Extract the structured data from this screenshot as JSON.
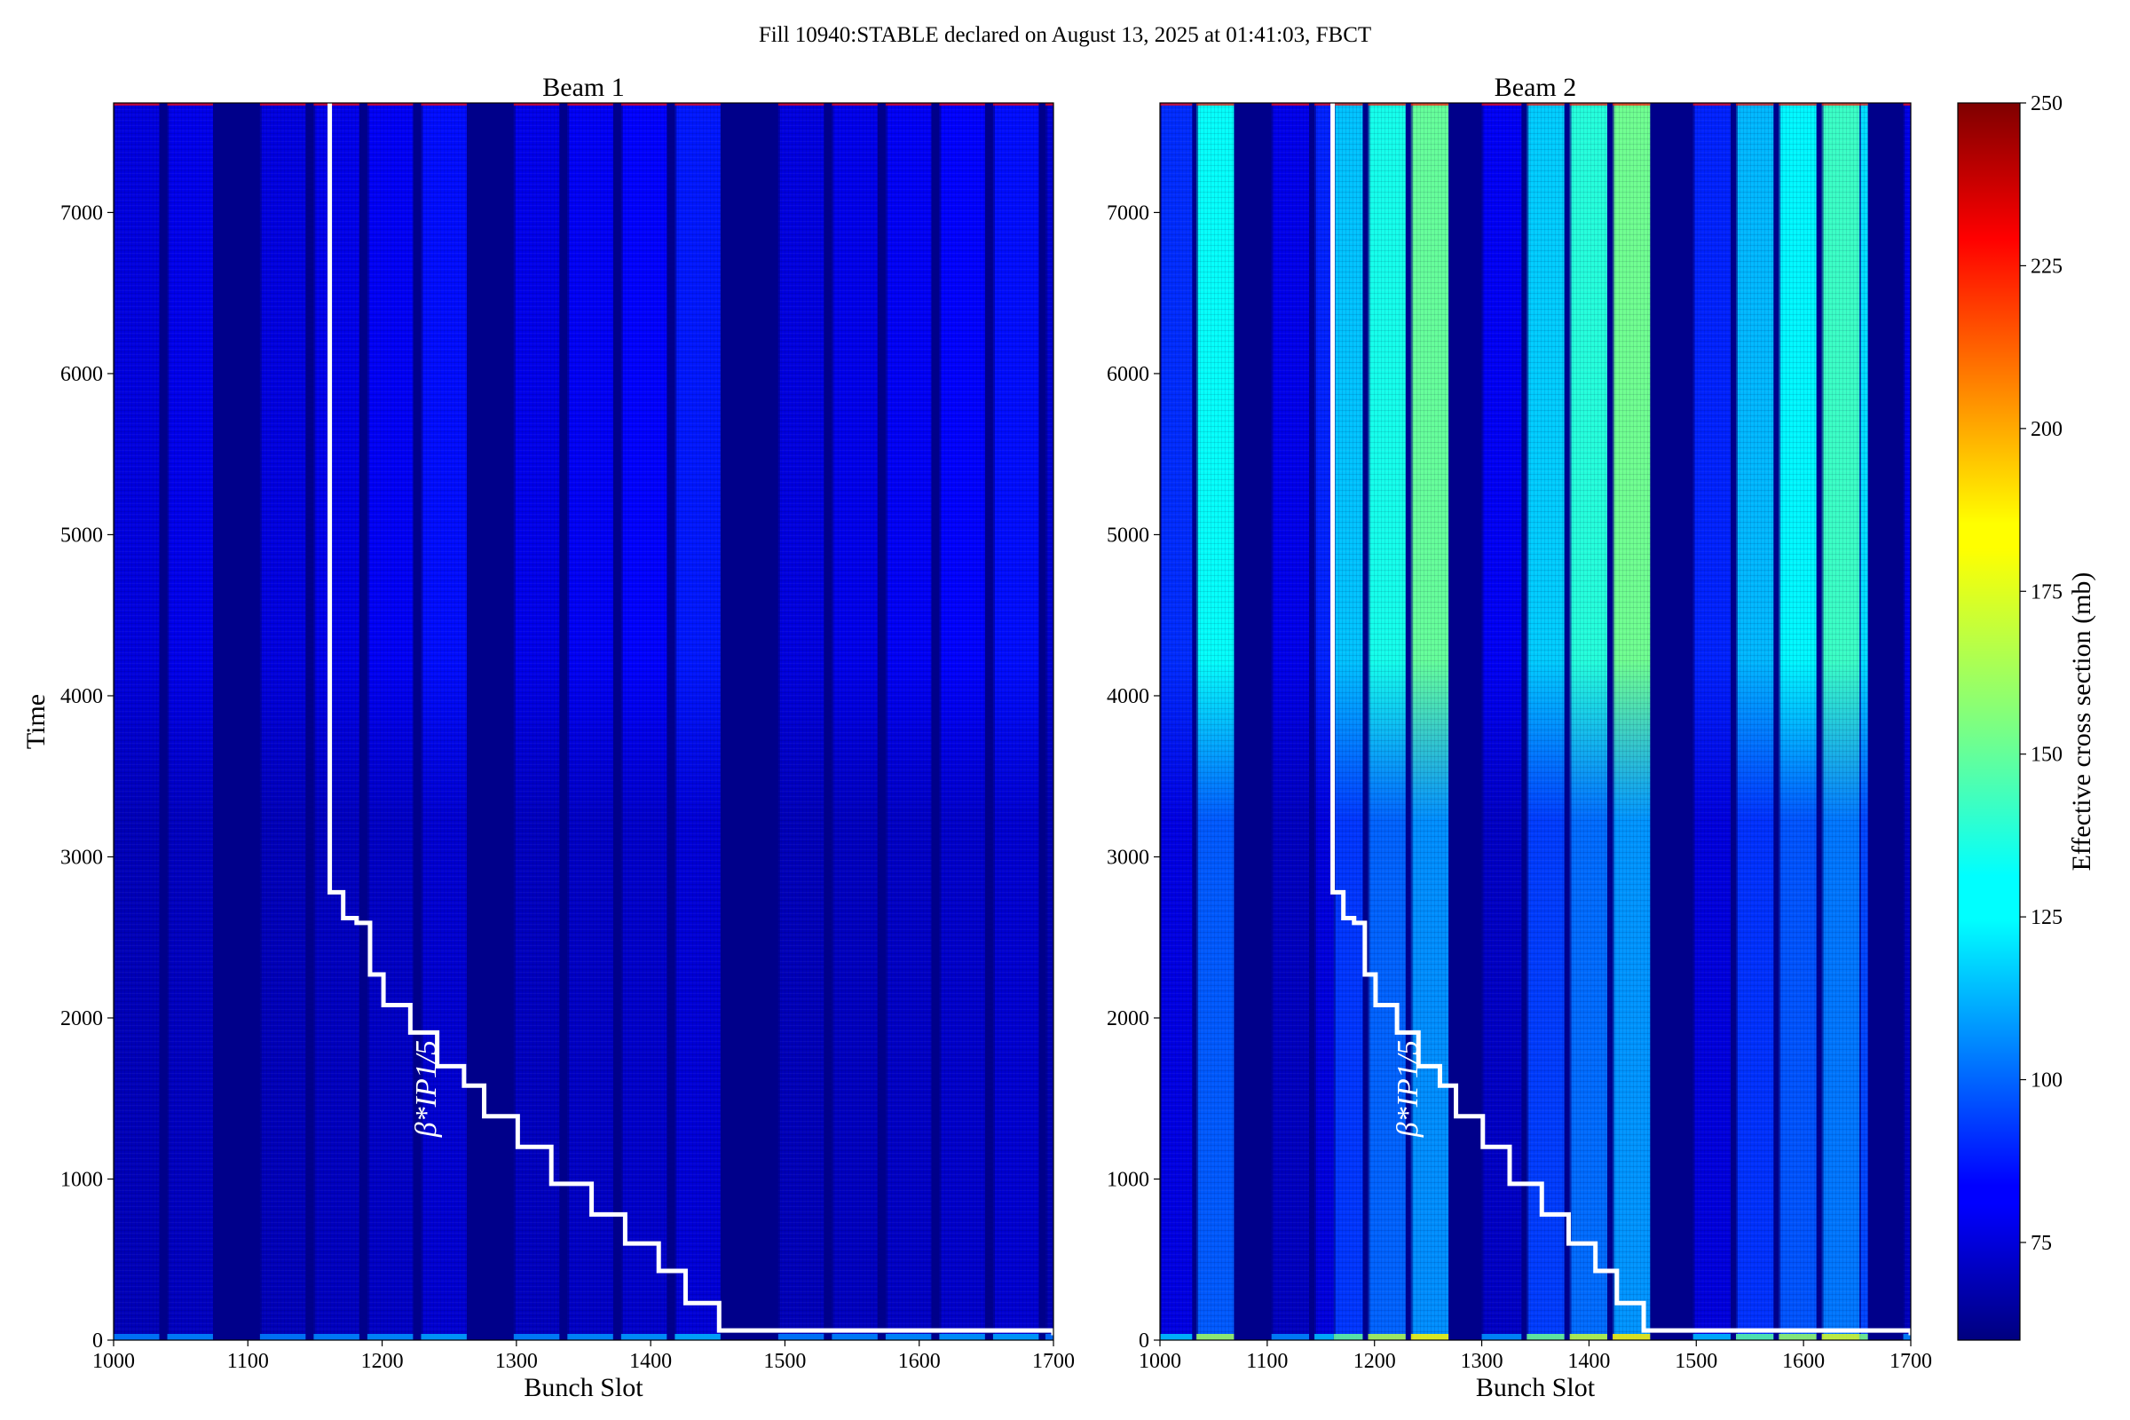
{
  "figure": {
    "suptitle": "Fill 10940:STABLE declared on August 13, 2025 at 01:41:03, FBCT"
  },
  "chart_data": [
    {
      "type": "heatmap",
      "title": "Beam 1",
      "xlabel": "Bunch Slot",
      "ylabel": "Time",
      "xlim": [
        1000,
        1700
      ],
      "ylim": [
        0,
        7680
      ],
      "xticks": [
        "1000",
        "1100",
        "1200",
        "1300",
        "1400",
        "1500",
        "1600",
        "1700"
      ],
      "yticks": [
        "0",
        "1000",
        "2000",
        "3000",
        "4000",
        "5000",
        "6000",
        "7000"
      ],
      "background_value": 62,
      "filled_bunch_ranges": [
        {
          "start": 1000,
          "end": 1034,
          "value": 78
        },
        {
          "start": 1040,
          "end": 1074,
          "value": 80
        },
        {
          "start": 1109,
          "end": 1143,
          "value": 78
        },
        {
          "start": 1149,
          "end": 1183,
          "value": 80
        },
        {
          "start": 1189,
          "end": 1223,
          "value": 82
        },
        {
          "start": 1229,
          "end": 1263,
          "value": 86
        },
        {
          "start": 1298,
          "end": 1332,
          "value": 80
        },
        {
          "start": 1338,
          "end": 1372,
          "value": 82
        },
        {
          "start": 1378,
          "end": 1412,
          "value": 84
        },
        {
          "start": 1418,
          "end": 1452,
          "value": 88
        },
        {
          "start": 1495,
          "end": 1529,
          "value": 78
        },
        {
          "start": 1535,
          "end": 1569,
          "value": 80
        },
        {
          "start": 1575,
          "end": 1609,
          "value": 82
        },
        {
          "start": 1615,
          "end": 1649,
          "value": 84
        },
        {
          "start": 1655,
          "end": 1689,
          "value": 86
        },
        {
          "start": 1694,
          "end": 1700,
          "value": 76
        }
      ],
      "beta_star_label": "β*IP1/5",
      "beta_star_step_time": [
        7680,
        2780,
        2620,
        2590,
        2270,
        2080,
        1910,
        1700,
        1580,
        1390,
        1200,
        970,
        780,
        600,
        430,
        230,
        60,
        30
      ],
      "beta_star_step_x": [
        1161,
        1161,
        1171,
        1181,
        1191,
        1201,
        1221,
        1241,
        1261,
        1276,
        1301,
        1326,
        1356,
        1381,
        1406,
        1426,
        1451,
        1700
      ]
    },
    {
      "type": "heatmap",
      "title": "Beam 2",
      "xlabel": "Bunch Slot",
      "ylabel": "",
      "xlim": [
        1000,
        1700
      ],
      "ylim": [
        0,
        7680
      ],
      "xticks": [
        "1000",
        "1100",
        "1200",
        "1300",
        "1400",
        "1500",
        "1600",
        "1700"
      ],
      "yticks": [
        "0",
        "1000",
        "2000",
        "3000",
        "4000",
        "5000",
        "6000",
        "7000"
      ],
      "background_value": 62,
      "filled_bunch_ranges": [
        {
          "start": 1000,
          "end": 1030,
          "value": 92
        },
        {
          "start": 1034,
          "end": 1069,
          "value": 132
        },
        {
          "start": 1104,
          "end": 1139,
          "value": 80
        },
        {
          "start": 1144,
          "end": 1162,
          "value": 90
        },
        {
          "start": 1162,
          "end": 1189,
          "value": 120
        },
        {
          "start": 1194,
          "end": 1229,
          "value": 135
        },
        {
          "start": 1234,
          "end": 1269,
          "value": 150
        },
        {
          "start": 1300,
          "end": 1337,
          "value": 82
        },
        {
          "start": 1342,
          "end": 1377,
          "value": 122
        },
        {
          "start": 1382,
          "end": 1417,
          "value": 138
        },
        {
          "start": 1422,
          "end": 1457,
          "value": 152
        },
        {
          "start": 1497,
          "end": 1532,
          "value": 90
        },
        {
          "start": 1537,
          "end": 1572,
          "value": 118
        },
        {
          "start": 1577,
          "end": 1612,
          "value": 130
        },
        {
          "start": 1617,
          "end": 1652,
          "value": 142
        },
        {
          "start": 1652,
          "end": 1660,
          "value": 125
        },
        {
          "start": 1693,
          "end": 1700,
          "value": 80
        }
      ],
      "beta_star_label": "β*IP1/5",
      "beta_star_step_time": [
        7680,
        2780,
        2620,
        2590,
        2270,
        2080,
        1910,
        1700,
        1580,
        1390,
        1200,
        970,
        780,
        600,
        430,
        230,
        60,
        30
      ],
      "beta_star_step_x": [
        1161,
        1161,
        1171,
        1181,
        1191,
        1201,
        1221,
        1241,
        1261,
        1276,
        1301,
        1326,
        1356,
        1381,
        1406,
        1426,
        1451,
        1700
      ]
    }
  ],
  "colorbar": {
    "label": "Effective cross section (mb)",
    "range": [
      60,
      250
    ],
    "ticks": [
      "75",
      "100",
      "125",
      "150",
      "175",
      "200",
      "225",
      "250"
    ],
    "colormap": "jet"
  }
}
